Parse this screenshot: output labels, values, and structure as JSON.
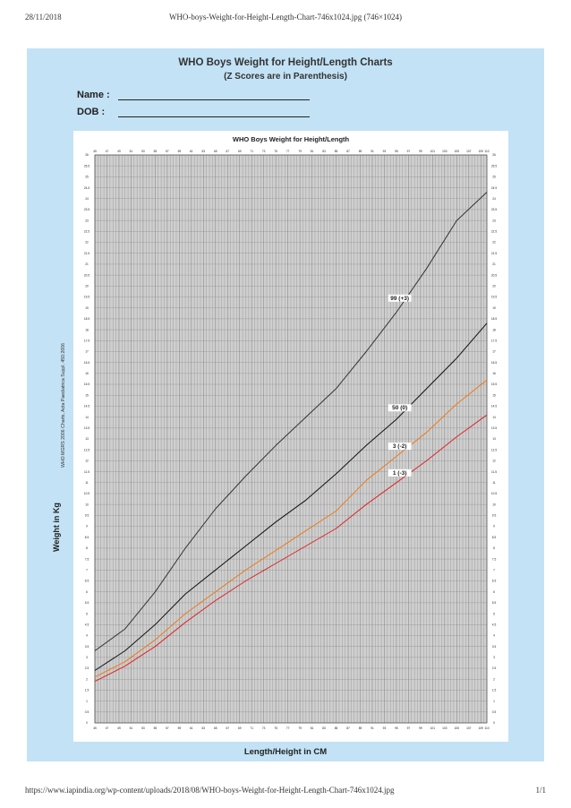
{
  "print_header": {
    "date": "28/11/2018",
    "title": "WHO-boys-Weight-for-Height-Length-Chart-746x1024.jpg (746×1024)"
  },
  "print_footer": {
    "url": "https://www.iapindia.org/wp-content/uploads/2018/08/WHO-boys-Weight-for-Height-Length-Chart-746x1024.jpg",
    "page": "1/1"
  },
  "sheet": {
    "title": "WHO Boys Weight for Height/Length Charts",
    "subtitle": "(Z Scores are in Parenthesis)",
    "name_label": "Name :",
    "dob_label": "DOB   :"
  },
  "colors": {
    "background": "#c3e2f5",
    "grid_bg": "#cfcfcf",
    "grid_line": "#8a8a8a",
    "line_plus3": "#333333",
    "line_zero": "#111111",
    "line_minus2": "#ef7a1a",
    "line_minus3": "#e02424"
  },
  "chart_data": {
    "type": "line",
    "title": "WHO Boys Weight for Height/Length",
    "xlabel": "Length/Height in CM",
    "ylabel": "Weight in Kg",
    "ylabel_note": "WHO MGRS 2006 Charts, Acta Paediatrica Suppl. 450:2006",
    "xlim": [
      45,
      110
    ],
    "ylim": [
      0,
      26
    ],
    "x_tick_labels": [
      "45",
      "47",
      "49",
      "51",
      "53",
      "55",
      "57",
      "59",
      "61",
      "63",
      "65",
      "67",
      "69",
      "71",
      "73",
      "75",
      "77",
      "79",
      "81",
      "83",
      "85",
      "87",
      "89",
      "91",
      "93",
      "95",
      "97",
      "99",
      "101",
      "103",
      "105",
      "107",
      "109",
      "110"
    ],
    "y_tick_labels": [
      "0",
      "0.5",
      "1",
      "1.5",
      "2",
      "2.5",
      "3",
      "3.5",
      "4",
      "4.5",
      "5",
      "5.5",
      "6",
      "6.5",
      "7",
      "7.5",
      "8",
      "8.5",
      "9",
      "9.5",
      "10",
      "10.5",
      "11",
      "11.5",
      "12",
      "12.5",
      "13",
      "13.5",
      "14",
      "14.5",
      "15",
      "15.5",
      "16",
      "16.5",
      "17",
      "17.5",
      "18",
      "18.5",
      "19",
      "19.5",
      "20",
      "20.5",
      "21",
      "21.5",
      "22",
      "22.5",
      "23",
      "23.5",
      "24",
      "24.5",
      "25",
      "25.5",
      "26"
    ],
    "grid": true,
    "x": [
      45,
      50,
      55,
      60,
      65,
      70,
      75,
      80,
      85,
      90,
      95,
      100,
      105,
      110
    ],
    "series": [
      {
        "name": "99 (+3)",
        "color": "#333333",
        "values": [
          3.3,
          4.3,
          6.0,
          8.0,
          9.8,
          11.3,
          12.7,
          14.0,
          15.3,
          17.0,
          18.8,
          20.8,
          23.0,
          24.3
        ]
      },
      {
        "name": "50 (0)",
        "color": "#111111",
        "values": [
          2.4,
          3.3,
          4.5,
          5.9,
          7.0,
          8.1,
          9.2,
          10.2,
          11.4,
          12.7,
          13.9,
          15.3,
          16.7,
          18.3
        ]
      },
      {
        "name": "3 (-2)",
        "color": "#ef7a1a",
        "values": [
          2.1,
          2.8,
          3.8,
          5.0,
          6.0,
          7.0,
          7.9,
          8.8,
          9.7,
          11.1,
          12.2,
          13.3,
          14.6,
          15.7
        ]
      },
      {
        "name": "1 (-3)",
        "color": "#e02424",
        "values": [
          1.9,
          2.6,
          3.5,
          4.6,
          5.6,
          6.5,
          7.3,
          8.1,
          8.9,
          10.0,
          11.0,
          12.0,
          13.1,
          14.1
        ]
      }
    ]
  }
}
